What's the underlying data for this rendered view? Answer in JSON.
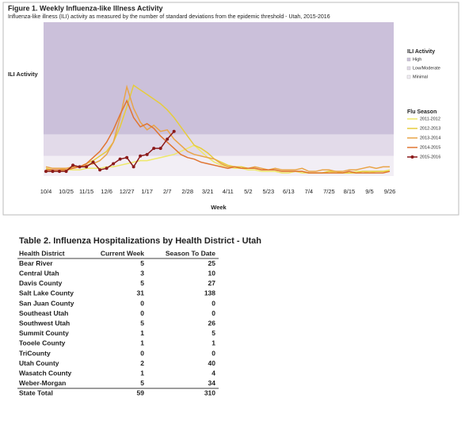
{
  "chart_data": {
    "type": "line",
    "title": "Figure 1. Weekly Influenza-like Illness Activity",
    "subtitle": "Influenza-like illness (ILI) activity  as measured by the number of standard deviations from the epidemic threshold - Utah, 2015-2016",
    "y_label": "ILI Activity",
    "x_label": "Week",
    "categories": [
      "10/4",
      null,
      null,
      "10/25",
      null,
      null,
      "11/15",
      null,
      null,
      "12/6",
      null,
      null,
      "12/27",
      null,
      null,
      "1/17",
      null,
      null,
      "2/7",
      null,
      null,
      "2/28",
      null,
      null,
      "3/21",
      null,
      null,
      "4/11",
      null,
      null,
      "5/2",
      null,
      null,
      "5/23",
      null,
      null,
      "6/13",
      null,
      null,
      "7/4",
      null,
      null,
      "7/25",
      null,
      null,
      "8/15",
      null,
      null,
      "9/5",
      null,
      null,
      "9/26"
    ],
    "ylim": [
      0,
      10
    ],
    "bands_title": "ILI Activity",
    "bands": [
      {
        "name": "High",
        "from": 2.7,
        "to": 10,
        "color": "#cbc0da"
      },
      {
        "name": "Low/Moderate",
        "from": 1.3,
        "to": 2.7,
        "color": "#e2dae9"
      },
      {
        "name": "Minimal",
        "from": 0,
        "to": 1.3,
        "color": "#f2eef5"
      }
    ],
    "legend_title": "Flu Season",
    "series": [
      {
        "name": "2011-2012",
        "color": "#eee86a",
        "values": [
          0.3,
          0.3,
          0.3,
          0.4,
          0.4,
          0.4,
          0.5,
          0.5,
          0.5,
          0.6,
          0.6,
          0.7,
          0.8,
          0.9,
          1.0,
          1.0,
          1.1,
          1.2,
          1.3,
          1.4,
          1.6,
          1.8,
          2.0,
          1.6,
          1.2,
          0.9,
          0.7,
          0.6,
          0.5,
          0.5,
          0.4,
          0.4,
          0.3,
          0.3,
          0.3,
          0.2,
          0.2,
          0.3,
          0.2,
          0.2,
          0.2,
          0.2,
          0.3,
          0.2,
          0.2,
          0.2,
          0.3,
          0.3,
          0.2,
          0.3,
          0.3,
          0.4
        ]
      },
      {
        "name": "2012-2013",
        "color": "#e6cc3c",
        "values": [
          0.5,
          0.4,
          0.4,
          0.5,
          0.5,
          0.6,
          0.8,
          1.0,
          1.3,
          1.6,
          2.2,
          3.2,
          4.5,
          5.9,
          5.6,
          5.3,
          5.0,
          4.7,
          4.3,
          3.8,
          3.2,
          2.6,
          2.0,
          1.8,
          1.5,
          1.1,
          0.9,
          0.7,
          0.6,
          0.6,
          0.5,
          0.5,
          0.4,
          0.4,
          0.4,
          0.3,
          0.3,
          0.3,
          0.3,
          0.2,
          0.2,
          0.2,
          0.3,
          0.3,
          0.2,
          0.2,
          0.2,
          0.3,
          0.3,
          0.3,
          0.3,
          0.3
        ]
      },
      {
        "name": "2013-2014",
        "color": "#e9a448",
        "values": [
          0.6,
          0.5,
          0.5,
          0.5,
          0.6,
          0.6,
          0.7,
          0.8,
          1.0,
          1.4,
          2.2,
          3.8,
          5.8,
          4.4,
          3.5,
          3.0,
          3.3,
          2.9,
          3.0,
          2.4,
          2.0,
          1.6,
          1.4,
          1.3,
          1.2,
          1.1,
          0.8,
          0.6,
          0.6,
          0.5,
          0.5,
          0.6,
          0.5,
          0.4,
          0.5,
          0.4,
          0.4,
          0.4,
          0.5,
          0.3,
          0.3,
          0.4,
          0.4,
          0.3,
          0.3,
          0.4,
          0.4,
          0.5,
          0.6,
          0.5,
          0.6,
          0.6
        ]
      },
      {
        "name": "2014-2015",
        "color": "#e07532",
        "values": [
          0.4,
          0.4,
          0.4,
          0.4,
          0.5,
          0.6,
          0.8,
          1.2,
          1.6,
          2.2,
          3.0,
          4.0,
          4.9,
          3.8,
          3.2,
          3.4,
          3.1,
          2.6,
          2.2,
          1.8,
          1.4,
          1.2,
          1.1,
          0.9,
          0.8,
          0.7,
          0.6,
          0.5,
          0.6,
          0.5,
          0.5,
          0.5,
          0.4,
          0.4,
          0.4,
          0.3,
          0.3,
          0.3,
          0.3,
          0.2,
          0.2,
          0.2,
          0.2,
          0.2,
          0.2,
          0.3,
          0.2,
          0.2,
          0.2,
          0.2,
          0.2,
          0.3
        ]
      },
      {
        "name": "2015-2016",
        "color": "#8b1a1a",
        "marker": true,
        "values": [
          0.3,
          0.3,
          0.3,
          0.3,
          0.7,
          0.6,
          0.6,
          0.9,
          0.4,
          0.5,
          0.8,
          1.1,
          1.2,
          0.6,
          1.3,
          1.4,
          1.8,
          1.8,
          2.4,
          2.9,
          null,
          null,
          null,
          null,
          null,
          null,
          null,
          null,
          null,
          null,
          null,
          null,
          null,
          null,
          null,
          null,
          null,
          null,
          null,
          null,
          null,
          null,
          null,
          null,
          null,
          null,
          null,
          null,
          null,
          null,
          null,
          null
        ]
      }
    ]
  },
  "table": {
    "title": "Table 2. Influenza Hospitalizations by Health District - Utah",
    "header": [
      "Health District",
      "Current Week",
      "Season To Date"
    ],
    "rows": [
      [
        "Bear River",
        "5",
        "25"
      ],
      [
        "Central Utah",
        "3",
        "10"
      ],
      [
        "Davis County",
        "5",
        "27"
      ],
      [
        "Salt Lake County",
        "31",
        "138"
      ],
      [
        "San Juan County",
        "0",
        "0"
      ],
      [
        "Southeast Utah",
        "0",
        "0"
      ],
      [
        "Southwest Utah",
        "5",
        "26"
      ],
      [
        "Summit County",
        "1",
        "5"
      ],
      [
        "Tooele County",
        "1",
        "1"
      ],
      [
        "TriCounty",
        "0",
        "0"
      ],
      [
        "Utah County",
        "2",
        "40"
      ],
      [
        "Wasatch County",
        "1",
        "4"
      ],
      [
        "Weber-Morgan",
        "5",
        "34"
      ]
    ],
    "total": [
      "State Total",
      "59",
      "310"
    ]
  }
}
